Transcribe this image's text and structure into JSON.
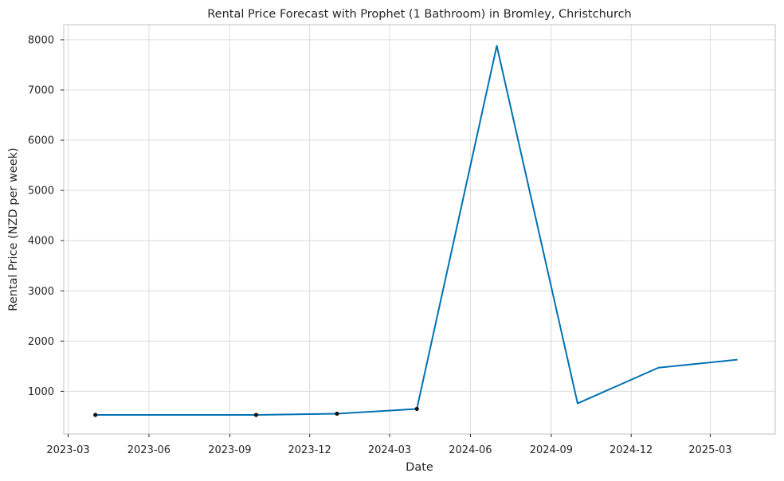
{
  "chart_data": {
    "type": "line",
    "title": "Rental Price Forecast with Prophet (1 Bathroom) in Bromley, Christchurch",
    "xlabel": "Date",
    "ylabel": "Rental Price (NZD per week)",
    "x_ticks": [
      "2023-03",
      "2023-06",
      "2023-09",
      "2023-12",
      "2024-03",
      "2024-06",
      "2024-09",
      "2024-12",
      "2025-03"
    ],
    "y_ticks": [
      1000,
      2000,
      3000,
      4000,
      5000,
      6000,
      7000,
      8000
    ],
    "xlim": [
      "2023-02-24",
      "2025-05-14"
    ],
    "ylim": [
      150,
      8300
    ],
    "grid": true,
    "colors": {
      "forecast": "#0072b2",
      "observed": "#111111"
    },
    "series": [
      {
        "kind": "forecast-line",
        "x": [
          "2023-04-01",
          "2023-10-01",
          "2024-01-01",
          "2024-04-01",
          "2024-07-01",
          "2024-10-01",
          "2025-01-01",
          "2025-04-01"
        ],
        "y": [
          530,
          530,
          555,
          650,
          7880,
          760,
          1470,
          1630
        ]
      },
      {
        "kind": "observed-points",
        "x": [
          "2023-04-01",
          "2023-10-01",
          "2024-01-01",
          "2024-04-01"
        ],
        "y": [
          530,
          530,
          555,
          650
        ]
      }
    ]
  }
}
